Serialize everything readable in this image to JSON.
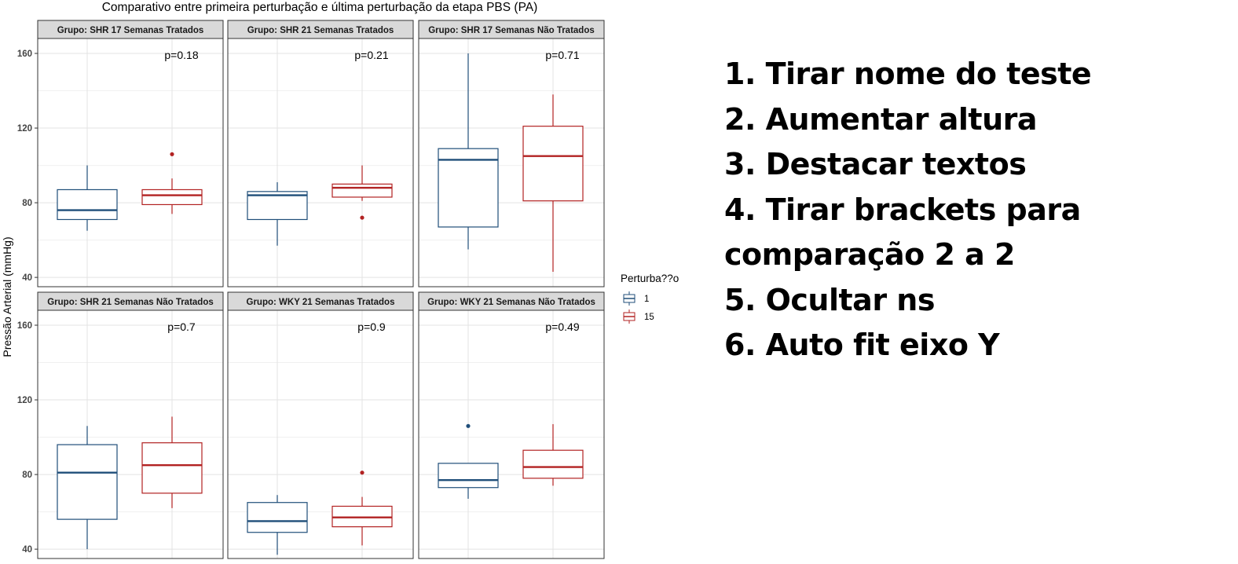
{
  "chart_data": {
    "type": "boxplot",
    "title": "Comparativo entre primeira perturbação e última perturbação da etapa PBS (PA)",
    "ylabel": "Pressão Arterial (mmHg)",
    "xlabel": "",
    "ylim": [
      35,
      168
    ],
    "yticks": [
      40,
      80,
      120,
      160
    ],
    "grid": true,
    "legend": {
      "title": "Perturba??o",
      "position": "right",
      "items": [
        {
          "label": "1",
          "color": "#1f4e79"
        },
        {
          "label": "15",
          "color": "#b22222"
        }
      ]
    },
    "facets": [
      {
        "label": "Grupo: SHR 17 Semanas Tratados",
        "pvalue": "p=0.18",
        "boxes": [
          {
            "group": "1",
            "min": 65,
            "q1": 71,
            "median": 76,
            "q3": 87,
            "max": 100,
            "outliers": []
          },
          {
            "group": "15",
            "min": 74,
            "q1": 79,
            "median": 84,
            "q3": 87,
            "max": 93,
            "outliers": [
              106
            ]
          }
        ]
      },
      {
        "label": "Grupo: SHR 21 Semanas Tratados",
        "pvalue": "p=0.21",
        "boxes": [
          {
            "group": "1",
            "min": 57,
            "q1": 71,
            "median": 84,
            "q3": 86,
            "max": 91,
            "outliers": []
          },
          {
            "group": "15",
            "min": 81,
            "q1": 83,
            "median": 88,
            "q3": 90,
            "max": 100,
            "outliers": [
              72
            ]
          }
        ]
      },
      {
        "label": "Grupo: SHR 17 Semanas Não Tratados",
        "pvalue": "p=0.71",
        "boxes": [
          {
            "group": "1",
            "min": 55,
            "q1": 67,
            "median": 103,
            "q3": 109,
            "max": 160,
            "outliers": []
          },
          {
            "group": "15",
            "min": 43,
            "q1": 81,
            "median": 105,
            "q3": 121,
            "max": 138,
            "outliers": []
          }
        ]
      },
      {
        "label": "Grupo: SHR 21 Semanas Não Tratados",
        "pvalue": "p=0.7",
        "boxes": [
          {
            "group": "1",
            "min": 40,
            "q1": 56,
            "median": 81,
            "q3": 96,
            "max": 106,
            "outliers": []
          },
          {
            "group": "15",
            "min": 62,
            "q1": 70,
            "median": 85,
            "q3": 97,
            "max": 111,
            "outliers": []
          }
        ]
      },
      {
        "label": "Grupo: WKY 21 Semanas Tratados",
        "pvalue": "p=0.9",
        "boxes": [
          {
            "group": "1",
            "min": 37,
            "q1": 49,
            "median": 55,
            "q3": 65,
            "max": 69,
            "outliers": []
          },
          {
            "group": "15",
            "min": 42,
            "q1": 52,
            "median": 57,
            "q3": 63,
            "max": 68,
            "outliers": [
              81
            ]
          }
        ]
      },
      {
        "label": "Grupo: WKY 21 Semanas Não Tratados",
        "pvalue": "p=0.49",
        "boxes": [
          {
            "group": "1",
            "min": 67,
            "q1": 73,
            "median": 77,
            "q3": 86,
            "max": 86,
            "outliers": [
              106
            ]
          },
          {
            "group": "15",
            "min": 74,
            "q1": 78,
            "median": 84,
            "q3": 93,
            "max": 107,
            "outliers": []
          }
        ]
      }
    ]
  },
  "notes": [
    "1. Tirar nome do teste",
    "2. Aumentar altura",
    "3. Destacar textos",
    "4. Tirar brackets para",
    "comparação 2 a 2",
    "5. Ocultar ns",
    "6. Auto fit eixo Y"
  ]
}
